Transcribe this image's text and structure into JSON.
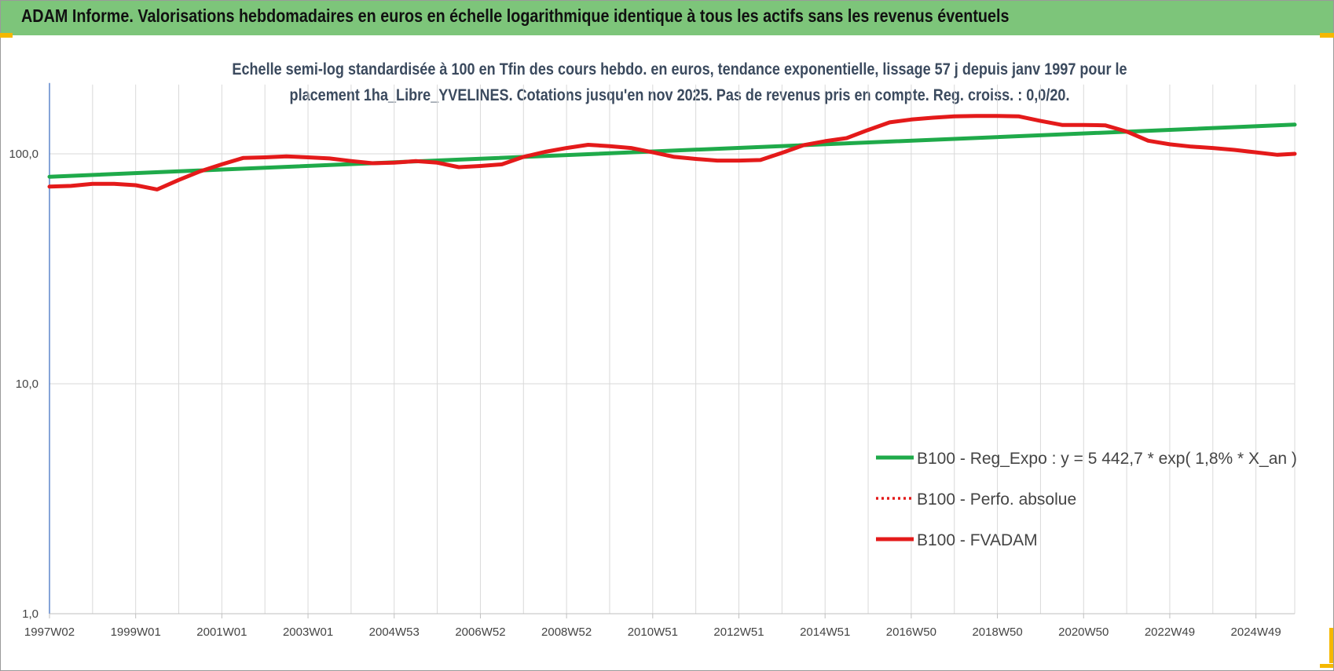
{
  "header": {
    "title": "ADAM Informe. Valorisations hebdomadaires en euros en échelle logarithmique identique à tous les actifs sans les revenus éventuels"
  },
  "chart_data": {
    "type": "line",
    "title_line1": "Echelle semi-log standardisée à 100 en Tfin des cours hebdo. en euros, tendance exponentielle, lissage 57 j depuis janv 1997 pour le",
    "title_line2": "placement 1ha_Libre_YVELINES. Cotations jusqu'en nov 2025. Pas de revenus pris en compte. Reg. croiss. : 0,0/20.",
    "yscale": "log",
    "ylim": [
      1,
      200
    ],
    "y_ticks": [
      {
        "value": 1,
        "label": "1,0"
      },
      {
        "value": 10,
        "label": "10,0"
      },
      {
        "value": 100,
        "label": "100,0"
      }
    ],
    "xlim": [
      1997.0,
      2025.9
    ],
    "x_ticks": [
      {
        "x": 1997.0,
        "label": "1997W02"
      },
      {
        "x": 1999.0,
        "label": "1999W01"
      },
      {
        "x": 2001.0,
        "label": "2001W01"
      },
      {
        "x": 2003.0,
        "label": "2003W01"
      },
      {
        "x": 2005.0,
        "label": "2004W53"
      },
      {
        "x": 2007.0,
        "label": "2006W52"
      },
      {
        "x": 2009.0,
        "label": "2008W52"
      },
      {
        "x": 2011.0,
        "label": "2010W51"
      },
      {
        "x": 2013.0,
        "label": "2012W51"
      },
      {
        "x": 2015.0,
        "label": "2014W51"
      },
      {
        "x": 2017.0,
        "label": "2016W50"
      },
      {
        "x": 2019.0,
        "label": "2018W50"
      },
      {
        "x": 2021.0,
        "label": "2020W50"
      },
      {
        "x": 2023.0,
        "label": "2022W49"
      },
      {
        "x": 2025.0,
        "label": "2024W49"
      }
    ],
    "grid": true,
    "legend_position": "bottom-right",
    "series": [
      {
        "name": "B100 - Reg_Expo : y = 5 442,7 * exp( 1,8% *  X_an )",
        "color": "#1faa4a",
        "style": "solid",
        "x": [
          1997.0,
          2025.9
        ],
        "y": [
          79.5,
          134.0
        ]
      },
      {
        "name": "B100 - Perfo. absolue",
        "color": "#e41a1a",
        "style": "dotted",
        "x": [],
        "y": []
      },
      {
        "name": "B100 - FVADAM",
        "color": "#e41a1a",
        "style": "solid",
        "x": [
          1997.0,
          1997.5,
          1998.0,
          1998.5,
          1999.0,
          1999.5,
          2000.0,
          2000.5,
          2001.0,
          2001.5,
          2002.0,
          2002.5,
          2003.0,
          2003.5,
          2004.0,
          2004.5,
          2005.0,
          2005.5,
          2006.0,
          2006.5,
          2007.0,
          2007.5,
          2008.0,
          2008.5,
          2009.0,
          2009.5,
          2010.0,
          2010.5,
          2011.0,
          2011.5,
          2012.0,
          2012.5,
          2013.0,
          2013.5,
          2014.0,
          2014.5,
          2015.0,
          2015.5,
          2016.0,
          2016.5,
          2017.0,
          2017.5,
          2018.0,
          2018.5,
          2019.0,
          2019.5,
          2020.0,
          2020.5,
          2021.0,
          2021.5,
          2022.0,
          2022.5,
          2023.0,
          2023.5,
          2024.0,
          2024.5,
          2025.0,
          2025.5,
          2025.9
        ],
        "y": [
          72.0,
          72.5,
          74.0,
          74.0,
          73.0,
          70.0,
          77.0,
          84.0,
          90.0,
          96.0,
          96.5,
          97.5,
          96.5,
          95.5,
          93.0,
          91.0,
          91.5,
          93.0,
          91.5,
          87.5,
          88.5,
          90.0,
          97.0,
          102.0,
          106.0,
          109.5,
          108.0,
          106.0,
          101.5,
          97.0,
          95.0,
          93.5,
          93.5,
          94.0,
          101.0,
          109.0,
          113.5,
          117.0,
          127.0,
          137.0,
          141.0,
          143.5,
          145.5,
          146.0,
          146.0,
          145.5,
          139.0,
          133.5,
          133.5,
          133.0,
          125.0,
          114.0,
          110.0,
          107.5,
          106.0,
          104.0,
          101.5,
          99.0,
          100.0
        ]
      }
    ]
  },
  "colors": {
    "header_bg": "#7dc57a",
    "corner_accent": "#f5b800",
    "axis_line": "#4472c4",
    "grid": "#d9d9d9"
  }
}
